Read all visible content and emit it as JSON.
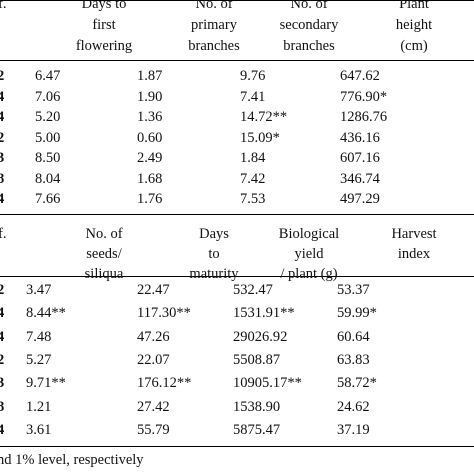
{
  "colors": {
    "text": "#111111",
    "rule": "#000000",
    "background": "#ffffff"
  },
  "section1": {
    "df_header": "f.",
    "headers": [
      [
        "Days to",
        "first",
        "flowering"
      ],
      [
        "No. of",
        "primary",
        "branches"
      ],
      [
        "No. of",
        "secondary",
        "branches"
      ],
      [
        "Plant",
        "height",
        "(cm)"
      ]
    ],
    "df_column": [
      "2",
      "4",
      "4",
      "2",
      "3",
      "8",
      "4"
    ],
    "rows": [
      [
        "6.47",
        "1.87",
        "9.76",
        "647.62"
      ],
      [
        "7.06",
        "1.90",
        "7.41",
        "776.90*"
      ],
      [
        "5.20",
        "1.36",
        "14.72**",
        "1286.76"
      ],
      [
        "5.00",
        "0.60",
        "15.09*",
        "436.16"
      ],
      [
        "8.50",
        "2.49",
        "1.84",
        "607.16"
      ],
      [
        "8.04",
        "1.68",
        "7.42",
        "346.74"
      ],
      [
        "7.66",
        "1.76",
        "7.53",
        "497.29"
      ]
    ]
  },
  "section2": {
    "df_header": "f.",
    "headers": [
      [
        "No. of",
        "seeds/",
        "siliqua"
      ],
      [
        "Days",
        "to",
        "maturity"
      ],
      [
        "Biological",
        "yield",
        "/ plant (g)"
      ],
      [
        "Harvest",
        "index",
        ""
      ]
    ],
    "df_column": [
      "2",
      "4",
      "4",
      "2",
      "3",
      "8",
      "4"
    ],
    "rows": [
      [
        "3.47",
        "22.47",
        "532.47",
        "53.37"
      ],
      [
        "8.44**",
        "117.30**",
        "1531.91**",
        "59.99*"
      ],
      [
        "7.48",
        "47.26",
        "29026.92",
        "60.64"
      ],
      [
        "5.27",
        "22.07",
        "5508.87",
        "63.83"
      ],
      [
        "9.71**",
        "176.12**",
        "10905.17**",
        "58.72*"
      ],
      [
        "1.21",
        "27.42",
        "1538.90",
        "24.62"
      ],
      [
        "3.61",
        "55.79",
        "5875.47",
        "37.19"
      ]
    ]
  },
  "footnote": "nd 1% level, respectively"
}
